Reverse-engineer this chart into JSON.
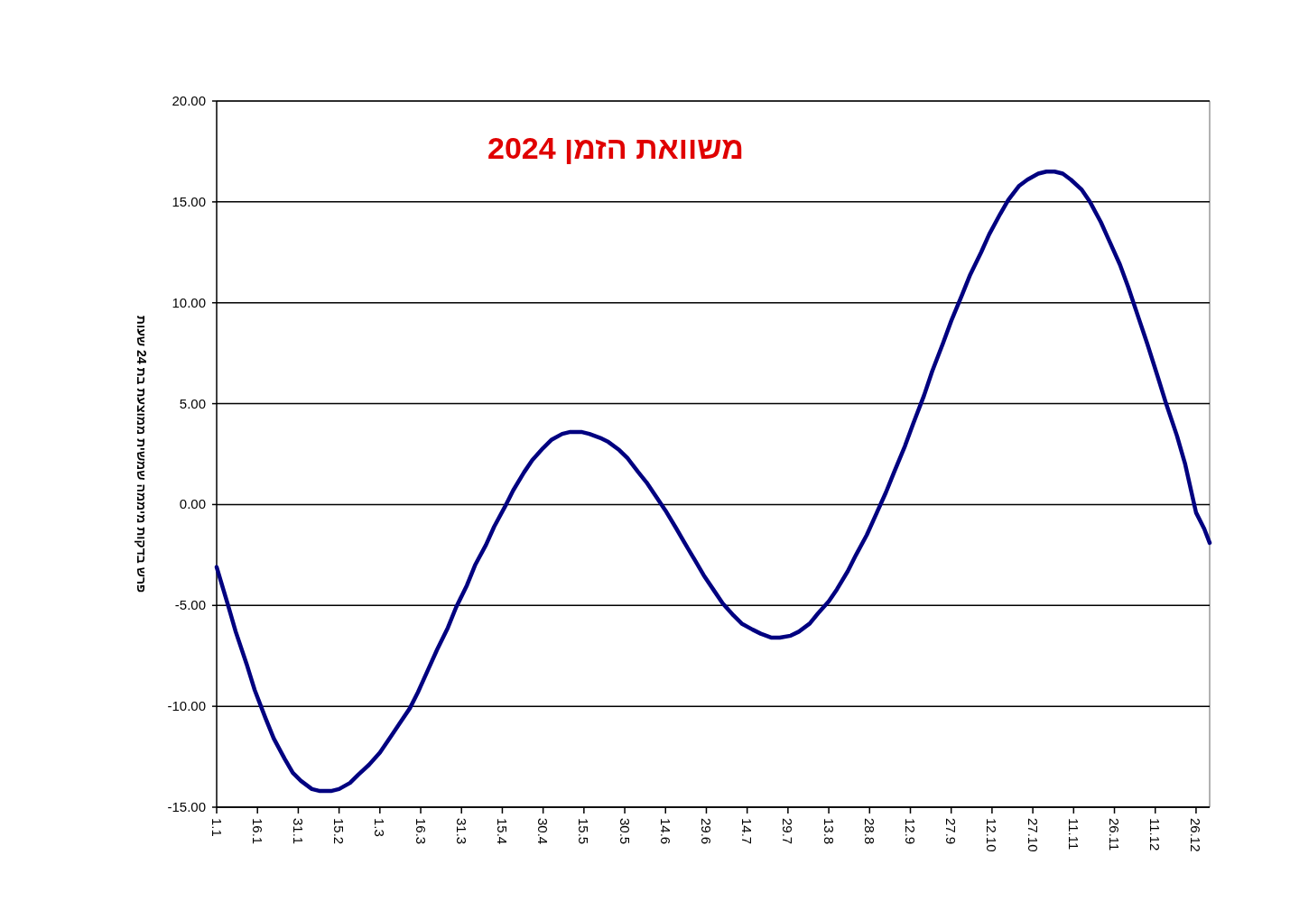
{
  "chart_data": {
    "type": "line",
    "title": "משוואת הזמן 2024",
    "ylabel": "פרש בדקות מיממה שמשית ממוצעת בת 24 שעות",
    "x": [
      "2024-01-01",
      "2024-01-05",
      "2024-01-08",
      "2024-01-12",
      "2024-01-15",
      "2024-01-19",
      "2024-01-22",
      "2024-01-26",
      "2024-01-29",
      "2024-02-01",
      "2024-02-05",
      "2024-02-08",
      "2024-02-12",
      "2024-02-15",
      "2024-02-19",
      "2024-02-22",
      "2024-02-26",
      "2024-03-01",
      "2024-03-05",
      "2024-03-08",
      "2024-03-12",
      "2024-03-15",
      "2024-03-19",
      "2024-03-22",
      "2024-03-26",
      "2024-03-29",
      "2024-04-02",
      "2024-04-05",
      "2024-04-09",
      "2024-04-12",
      "2024-04-16",
      "2024-04-19",
      "2024-04-23",
      "2024-04-26",
      "2024-04-30",
      "2024-05-03",
      "2024-05-07",
      "2024-05-10",
      "2024-05-14",
      "2024-05-17",
      "2024-05-21",
      "2024-05-24",
      "2024-05-28",
      "2024-05-31",
      "2024-06-04",
      "2024-06-07",
      "2024-06-11",
      "2024-06-14",
      "2024-06-18",
      "2024-06-21",
      "2024-06-25",
      "2024-06-28",
      "2024-07-02",
      "2024-07-05",
      "2024-07-09",
      "2024-07-12",
      "2024-07-16",
      "2024-07-19",
      "2024-07-23",
      "2024-07-26",
      "2024-07-30",
      "2024-08-02",
      "2024-08-06",
      "2024-08-09",
      "2024-08-13",
      "2024-08-16",
      "2024-08-20",
      "2024-08-23",
      "2024-08-27",
      "2024-08-30",
      "2024-09-03",
      "2024-09-06",
      "2024-09-10",
      "2024-09-13",
      "2024-09-17",
      "2024-09-20",
      "2024-09-24",
      "2024-09-27",
      "2024-10-01",
      "2024-10-04",
      "2024-10-08",
      "2024-10-11",
      "2024-10-15",
      "2024-10-18",
      "2024-10-22",
      "2024-10-25",
      "2024-10-29",
      "2024-11-01",
      "2024-11-04",
      "2024-11-07",
      "2024-11-10",
      "2024-11-14",
      "2024-11-17",
      "2024-11-21",
      "2024-11-24",
      "2024-11-28",
      "2024-12-01",
      "2024-12-05",
      "2024-12-08",
      "2024-12-12",
      "2024-12-15",
      "2024-12-19",
      "2024-12-22",
      "2024-12-26",
      "2024-12-29",
      "2024-12-31"
    ],
    "series": [
      {
        "color": "#000080",
        "values": [
          -3.1,
          -4.9,
          -6.3,
          -7.9,
          -9.2,
          -10.6,
          -11.6,
          -12.6,
          -13.3,
          -13.7,
          -14.1,
          -14.2,
          -14.2,
          -14.1,
          -13.8,
          -13.4,
          -12.9,
          -12.3,
          -11.5,
          -10.9,
          -10.1,
          -9.3,
          -8.1,
          -7.2,
          -6.1,
          -5.1,
          -4.0,
          -3.0,
          -2.0,
          -1.1,
          -0.1,
          0.7,
          1.6,
          2.2,
          2.8,
          3.2,
          3.5,
          3.6,
          3.6,
          3.5,
          3.3,
          3.1,
          2.7,
          2.3,
          1.6,
          1.1,
          0.3,
          -0.3,
          -1.2,
          -1.9,
          -2.8,
          -3.5,
          -4.3,
          -4.9,
          -5.5,
          -5.9,
          -6.2,
          -6.4,
          -6.6,
          -6.6,
          -6.5,
          -6.3,
          -5.9,
          -5.4,
          -4.8,
          -4.2,
          -3.3,
          -2.5,
          -1.5,
          -0.6,
          0.6,
          1.6,
          2.9,
          4.0,
          5.4,
          6.6,
          8.0,
          9.1,
          10.4,
          11.4,
          12.5,
          13.4,
          14.4,
          15.1,
          15.8,
          16.1,
          16.4,
          16.5,
          16.5,
          16.4,
          16.1,
          15.6,
          15.0,
          14.0,
          13.1,
          11.9,
          10.8,
          9.2,
          8.0,
          6.3,
          5.0,
          3.4,
          2.0,
          -0.4,
          -1.2,
          -1.9
        ]
      }
    ],
    "xlim": [
      "2024-01-01",
      "2024-12-31"
    ],
    "xticks": [
      {
        "value": "2024-01-01",
        "label": "1.1"
      },
      {
        "value": "2024-01-16",
        "label": "16.1"
      },
      {
        "value": "2024-01-31",
        "label": "31.1"
      },
      {
        "value": "2024-02-15",
        "label": "15.2"
      },
      {
        "value": "2024-03-01",
        "label": "1.3"
      },
      {
        "value": "2024-03-16",
        "label": "16.3"
      },
      {
        "value": "2024-03-31",
        "label": "31.3"
      },
      {
        "value": "2024-04-15",
        "label": "15.4"
      },
      {
        "value": "2024-04-30",
        "label": "30.4"
      },
      {
        "value": "2024-05-15",
        "label": "15.5"
      },
      {
        "value": "2024-05-30",
        "label": "30.5"
      },
      {
        "value": "2024-06-14",
        "label": "14.6"
      },
      {
        "value": "2024-06-29",
        "label": "29.6"
      },
      {
        "value": "2024-07-14",
        "label": "14.7"
      },
      {
        "value": "2024-07-29",
        "label": "29.7"
      },
      {
        "value": "2024-08-13",
        "label": "13.8"
      },
      {
        "value": "2024-08-28",
        "label": "28.8"
      },
      {
        "value": "2024-09-12",
        "label": "12.9"
      },
      {
        "value": "2024-09-27",
        "label": "27.9"
      },
      {
        "value": "2024-10-12",
        "label": "12.10"
      },
      {
        "value": "2024-10-27",
        "label": "27.10"
      },
      {
        "value": "2024-11-11",
        "label": "11.11"
      },
      {
        "value": "2024-11-26",
        "label": "26.11"
      },
      {
        "value": "2024-12-11",
        "label": "11.12"
      },
      {
        "value": "2024-12-26",
        "label": "26.12"
      }
    ],
    "ylim": [
      -15,
      20
    ],
    "yticks": [
      {
        "value": -15,
        "label": "-15.00"
      },
      {
        "value": -10,
        "label": "-10.00"
      },
      {
        "value": -5,
        "label": "-5.00"
      },
      {
        "value": 0,
        "label": "0.00"
      },
      {
        "value": 5,
        "label": "5.00"
      },
      {
        "value": 10,
        "label": "10.00"
      },
      {
        "value": 15,
        "label": "15.00"
      },
      {
        "value": 20,
        "label": "20.00"
      }
    ],
    "grid": "y",
    "marker": "none",
    "line_style": "solid"
  }
}
